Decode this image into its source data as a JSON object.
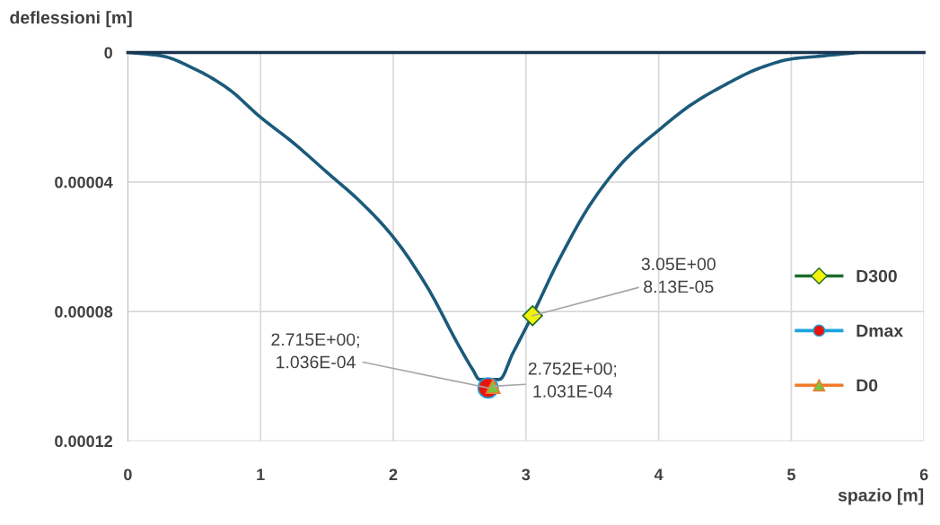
{
  "chart_data": {
    "type": "line",
    "xlabel": "spazio [m]",
    "ylabel": "deflessioni [m]",
    "xlim": [
      0,
      6
    ],
    "xticks": [
      0,
      1,
      2,
      3,
      4,
      5,
      6
    ],
    "ylim": [
      0.00012,
      0
    ],
    "yticks": [
      {
        "value": 0,
        "label": "0"
      },
      {
        "value": 4e-05,
        "label": "0.00004"
      },
      {
        "value": 8e-05,
        "label": "0.00008"
      },
      {
        "value": 0.00012,
        "label": "0.00012"
      }
    ],
    "grid": true,
    "legend": "right",
    "series": [
      {
        "color": "#1b5a7a",
        "marker": "none",
        "x": [
          0,
          0.25,
          0.5,
          0.75,
          1,
          1.25,
          1.5,
          1.75,
          2,
          2.25,
          2.5,
          2.6,
          2.65,
          2.8,
          2.9,
          3.05,
          3.25,
          3.5,
          3.75,
          4,
          4.25,
          4.5,
          4.75,
          5,
          5.25,
          5.5
        ],
        "values": [
          0,
          1e-06,
          5e-06,
          1.1e-05,
          2e-05,
          2.8e-05,
          3.7e-05,
          4.6e-05,
          5.7e-05,
          7.2e-05,
          9.1e-05,
          9.8e-05,
          0.000101,
          0.000101,
          9.3e-05,
          8.1e-05,
          6.4e-05,
          4.6e-05,
          3.3e-05,
          2.4e-05,
          1.6e-05,
          1e-05,
          5e-06,
          2e-06,
          1e-06,
          0
        ]
      },
      {
        "name": "D300",
        "color": "#1e6b2a",
        "marker": "diamond",
        "colors": [
          "#f2f20a"
        ],
        "x": [
          3.05
        ],
        "values": [
          8.13e-05
        ]
      },
      {
        "name": "Dmax",
        "color": "#1ca3dc",
        "marker": "circle",
        "colors": [
          "#e8150c"
        ],
        "x": [
          2.715
        ],
        "values": [
          0.0001036
        ]
      },
      {
        "name": "D0",
        "color": "#f07a2a",
        "marker": "triangle",
        "colors": [
          "#7cc242"
        ],
        "x": [
          2.752
        ],
        "values": [
          0.0001031
        ]
      }
    ],
    "annotations": [
      {
        "text": "3.05E+00\n8.13E-05",
        "x": 3.05,
        "y": 8.13e-05
      },
      {
        "text": "2.715E+00;\n1.036E-04",
        "x": 2.715,
        "y": 0.0001036
      },
      {
        "text": "2.752E+00;\n1.031E-04",
        "x": 2.752,
        "y": 0.0001031
      }
    ]
  }
}
